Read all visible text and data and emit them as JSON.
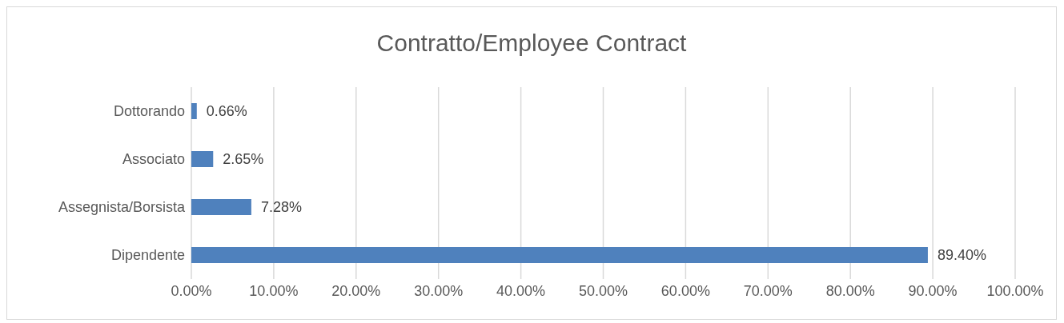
{
  "chart_data": {
    "type": "bar",
    "orientation": "horizontal",
    "title": "Contratto/Employee Contract",
    "categories": [
      "Dottorando",
      "Associato",
      "Assegnista/Borsista",
      "Dipendente"
    ],
    "values": [
      0.66,
      2.65,
      7.28,
      89.4
    ],
    "value_labels": [
      "0.66%",
      "2.65%",
      "7.28%",
      "89.40%"
    ],
    "color": "#4f81bd",
    "xlim": [
      0,
      100
    ],
    "xticks": [
      {
        "value": 0,
        "label": "0.00%"
      },
      {
        "value": 10,
        "label": "10.00%"
      },
      {
        "value": 20,
        "label": "20.00%"
      },
      {
        "value": 30,
        "label": "30.00%"
      },
      {
        "value": 40,
        "label": "40.00%"
      },
      {
        "value": 50,
        "label": "50.00%"
      },
      {
        "value": 60,
        "label": "60.00%"
      },
      {
        "value": 70,
        "label": "70.00%"
      },
      {
        "value": 80,
        "label": "80.00%"
      },
      {
        "value": 90,
        "label": "90.00%"
      },
      {
        "value": 100,
        "label": "100.00%"
      }
    ],
    "grid": "x",
    "legend": false
  }
}
